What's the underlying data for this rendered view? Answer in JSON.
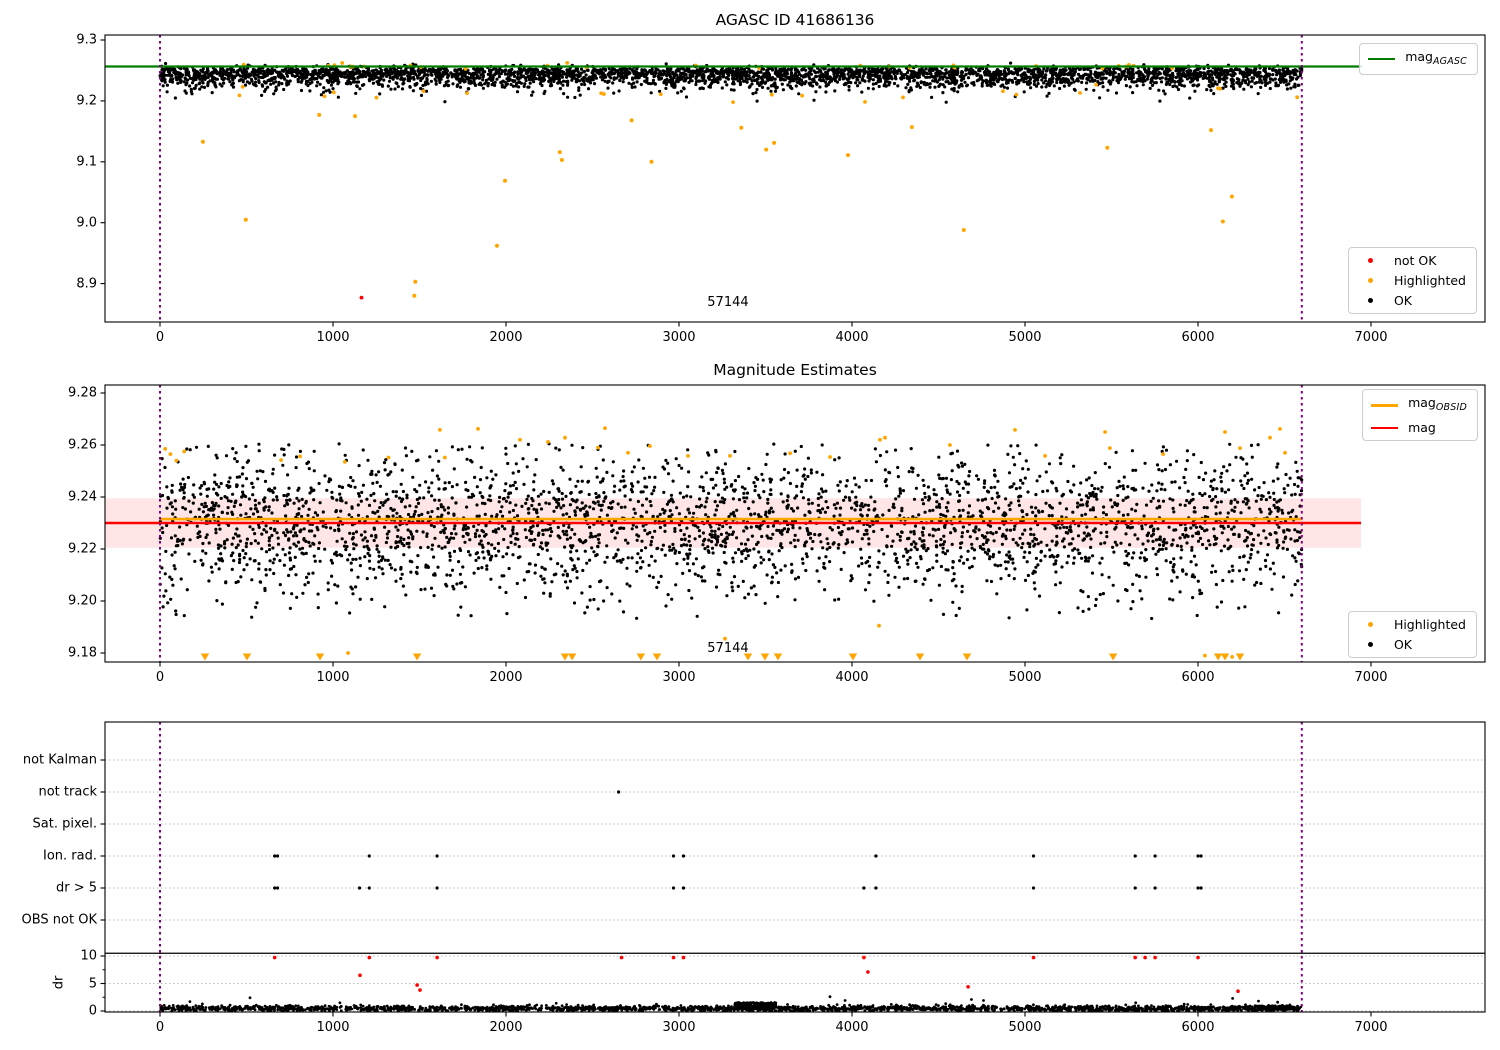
{
  "colors": {
    "green": "#007d00",
    "orange": "#ffa500",
    "red": "#ff0000",
    "black": "#000000",
    "purple": "#800080",
    "band": "rgba(255,0,0,0.10)",
    "grid": "#bbbbbb",
    "axis": "#000000"
  },
  "chart_data": {
    "type": "scatter",
    "x_axis": {
      "tick_values": [
        0,
        1000,
        2000,
        3000,
        4000,
        5000,
        6000,
        7000
      ],
      "tick_labels": [
        "0",
        "1000",
        "2000",
        "3000",
        "4000",
        "5000",
        "6000",
        "7000"
      ],
      "xlim": [
        -330,
        7660
      ]
    },
    "window_x": [
      0,
      6600
    ],
    "panels": [
      {
        "key": "agasc",
        "title": "AGASC ID 41686136",
        "ylim": [
          8.837,
          9.308
        ],
        "y_tick_values": [
          9.3,
          9.2,
          9.1,
          9.0,
          8.9
        ],
        "y_tick_labels": [
          "9.3",
          "9.2",
          "9.1",
          "9.0",
          "8.9"
        ],
        "agasc_mag": 9.2565,
        "legend_top": {
          "main": "mag",
          "sub": "AGASC"
        },
        "legend_points": [
          {
            "label": "not OK",
            "color_key": "red"
          },
          {
            "label": "Highlighted",
            "color_key": "orange"
          },
          {
            "label": "OK",
            "color_key": "black"
          }
        ],
        "obsid_label": {
          "text": "57144",
          "x": 3283,
          "mag": 8.868
        },
        "ok_band": {
          "n": 3800,
          "mag_top": 9.2525,
          "spread": 0.0145,
          "jitter": 0.0035,
          "clip_min": 9.197
        },
        "highlighted_band": {
          "n": 22,
          "mag_center": 9.209,
          "sigma": 0.006
        },
        "highlighted_line": {
          "n": 28,
          "mag_center": 9.256,
          "sigma": 0.0028
        },
        "highlighted_outliers": [
          [
            248,
            9.133
          ],
          [
            496,
            9.005
          ],
          [
            920,
            9.177
          ],
          [
            1127,
            9.175
          ],
          [
            1470,
            8.88
          ],
          [
            1476,
            8.903
          ],
          [
            1948,
            8.962
          ],
          [
            1994,
            9.069
          ],
          [
            2311,
            9.116
          ],
          [
            2323,
            9.103
          ],
          [
            2726,
            9.168
          ],
          [
            2841,
            9.1
          ],
          [
            3360,
            9.156
          ],
          [
            3504,
            9.12
          ],
          [
            3550,
            9.131
          ],
          [
            3977,
            9.111
          ],
          [
            4346,
            9.157
          ],
          [
            4646,
            8.988
          ],
          [
            5476,
            9.123
          ],
          [
            6075,
            9.152
          ],
          [
            6144,
            9.002
          ],
          [
            6196,
            9.043
          ]
        ],
        "not_ok_points": [
          [
            1165,
            8.877
          ]
        ]
      },
      {
        "key": "estimates",
        "title": "Magnitude Estimates",
        "ylim": [
          9.1765,
          9.283
        ],
        "y_tick_values": [
          9.28,
          9.26,
          9.24,
          9.22,
          9.2,
          9.18
        ],
        "y_tick_labels": [
          "9.28",
          "9.26",
          "9.24",
          "9.22",
          "9.20",
          "9.18"
        ],
        "mag": 9.23,
        "mag_err_band": [
          9.2205,
          9.2395
        ],
        "mag_obsid_line": 9.2315,
        "legend_lines": [
          {
            "main": "mag",
            "sub": "OBSID",
            "color_key": "orange",
            "weight": 3
          },
          {
            "main": "mag",
            "sub": "",
            "color_key": "red",
            "weight": 2
          }
        ],
        "legend_points": [
          {
            "label": "Highlighted",
            "color_key": "orange"
          },
          {
            "label": "OK",
            "color_key": "black"
          }
        ],
        "obsid_label": {
          "text": "57144",
          "x": 3283,
          "mag": 9.1815
        },
        "ok_scatter": {
          "n": 3200,
          "mean": 9.2295,
          "sigma": 0.0138,
          "clip": [
            9.193,
            9.2605
          ]
        },
        "highlighted_top": [
          [
            30,
            9.2585
          ],
          [
            60,
            9.2565
          ],
          [
            95,
            9.254
          ],
          [
            140,
            9.2575
          ],
          [
            700,
            9.2542
          ],
          [
            809,
            9.2556
          ],
          [
            1069,
            9.2535
          ],
          [
            1321,
            9.2552
          ],
          [
            1618,
            9.2658
          ],
          [
            1647,
            9.2552
          ],
          [
            1838,
            9.2662
          ],
          [
            2081,
            9.262
          ],
          [
            2243,
            9.2612
          ],
          [
            2341,
            9.2628
          ],
          [
            2532,
            9.259
          ],
          [
            2572,
            9.2665
          ],
          [
            2705,
            9.257
          ],
          [
            2832,
            9.2596
          ],
          [
            3052,
            9.2558
          ],
          [
            3295,
            9.2558
          ],
          [
            3642,
            9.2568
          ],
          [
            3873,
            9.2554
          ],
          [
            4162,
            9.262
          ],
          [
            4191,
            9.2628
          ],
          [
            4566,
            9.26
          ],
          [
            4942,
            9.2658
          ],
          [
            5116,
            9.2558
          ],
          [
            5463,
            9.265
          ],
          [
            5491,
            9.2588
          ],
          [
            5798,
            9.2565
          ],
          [
            6156,
            9.265
          ],
          [
            6243,
            9.2588
          ],
          [
            6416,
            9.2628
          ],
          [
            6474,
            9.2662
          ],
          [
            6503,
            9.257
          ]
        ],
        "highlighted_bottom": [
          [
            1087,
            9.18
          ],
          [
            3266,
            9.1855
          ],
          [
            4156,
            9.1905
          ],
          [
            6040,
            9.179
          ],
          [
            6197,
            9.1785
          ]
        ],
        "clipped_triangles_x": [
          260,
          503,
          925,
          1486,
          2341,
          2382,
          2780,
          2873,
          3399,
          3497,
          3572,
          4006,
          4393,
          4665,
          5509,
          6116,
          6156,
          6243
        ]
      },
      {
        "key": "flags",
        "categories": [
          "not Kalman",
          "not track",
          "Sat. pixel.",
          "Ion. rad.",
          "dr > 5",
          "OBS not OK"
        ],
        "dr_axis_label": "dr",
        "dr_tick_values": [
          10,
          5,
          0
        ],
        "dr_tick_labels": [
          "10",
          "5",
          "0"
        ],
        "dr_limit_line": 10.5,
        "flag_points": {
          "not Kalman": [],
          "not track": [
            2651
          ],
          "Sat. pixel.": [],
          "Ion. rad.": [
            663,
            680,
            1210,
            1602,
            2968,
            3026,
            4138,
            5049,
            5637,
            5752,
            6000,
            6018
          ],
          "dr > 5": [
            663,
            680,
            1153,
            1210,
            1602,
            2968,
            3026,
            4069,
            4138,
            5049,
            5637,
            5752,
            6000,
            6018
          ],
          "OBS not OK": []
        },
        "dr_red_high": {
          "dr": 9.7,
          "x": [
            663,
            1210,
            1602,
            2668,
            2968,
            3026,
            4069,
            5049,
            5637,
            5694,
            5752,
            6000
          ]
        },
        "dr_red_other": [
          [
            1156,
            6.5
          ],
          [
            1486,
            4.7
          ],
          [
            1503,
            3.8
          ],
          [
            4092,
            7.1
          ],
          [
            4671,
            4.4
          ],
          [
            6231,
            3.6
          ]
        ],
        "dr_black_outliers": [
          [
            173,
            1.7
          ],
          [
            245,
            1.3
          ],
          [
            520,
            2.4
          ],
          [
            1040,
            1.5
          ],
          [
            2290,
            1.4
          ],
          [
            3873,
            2.6
          ],
          [
            3960,
            1.9
          ],
          [
            4690,
            2.1
          ],
          [
            4760,
            1.9
          ],
          [
            5640,
            1.5
          ],
          [
            6200,
            2.3
          ],
          [
            6350,
            1.8
          ],
          [
            6460,
            1.6
          ]
        ],
        "dr_scatter": {
          "n": 2300,
          "mean": 0.45,
          "sigma": 0.26,
          "min": 0.04,
          "max": 1.35,
          "bumps": [
            {
              "x0": 3320,
              "x1": 3560,
              "n": 260,
              "dr_min": 0.35,
              "dr_max": 1.55
            },
            {
              "x0": 6340,
              "x1": 6560,
              "n": 150,
              "dr_min": 0.25,
              "dr_max": 0.95
            }
          ]
        }
      }
    ]
  }
}
